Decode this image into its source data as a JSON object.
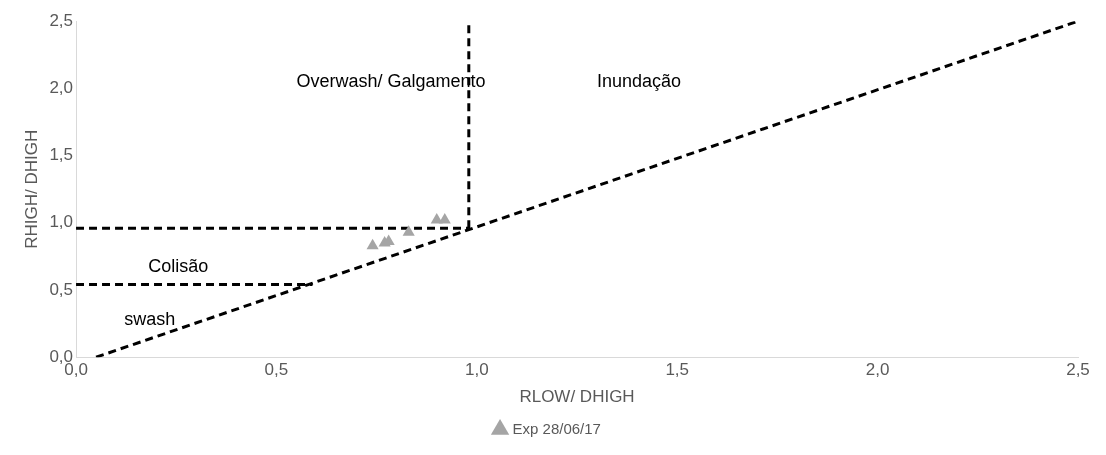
{
  "chart_data": {
    "type": "scatter",
    "xlabel": "RLOW/ DHIGH",
    "ylabel": "RHIGH/ DHIGH",
    "xlim": [
      0,
      2.5
    ],
    "ylim": [
      0,
      2.5
    ],
    "xticks": [
      {
        "value": 0,
        "label": "0,0"
      },
      {
        "value": 0.5,
        "label": "0,5"
      },
      {
        "value": 1,
        "label": "1,0"
      },
      {
        "value": 1.5,
        "label": "1,5"
      },
      {
        "value": 2,
        "label": "2,0"
      },
      {
        "value": 2.5,
        "label": "2,5"
      }
    ],
    "yticks": [
      {
        "value": 0,
        "label": "0,0"
      },
      {
        "value": 0.5,
        "label": "0,5"
      },
      {
        "value": 1,
        "label": "1,0"
      },
      {
        "value": 1.5,
        "label": "1,5"
      },
      {
        "value": 2,
        "label": "2,0"
      },
      {
        "value": 2.5,
        "label": "2,5"
      }
    ],
    "grid": false,
    "legend": "bottom",
    "marker": "triangle",
    "series": [
      {
        "name": "Exp 28/06/17",
        "type": "scatter",
        "color": "#a5a5a5",
        "x": [
          0.74,
          0.77,
          0.78,
          0.83,
          0.9,
          0.92
        ],
        "values": [
          0.83,
          0.85,
          0.86,
          0.93,
          1.02,
          1.02
        ]
      },
      {
        "type": "line",
        "color": "#000000",
        "line_style": "dashed",
        "marker": "none",
        "x": [
          0,
          0.98
        ],
        "values": [
          0.96,
          0.96
        ]
      },
      {
        "type": "line",
        "color": "#000000",
        "line_style": "dashed",
        "marker": "none",
        "x": [
          0.98,
          0.98
        ],
        "values": [
          0.96,
          2.5
        ]
      },
      {
        "type": "line",
        "color": "#000000",
        "line_style": "dashed",
        "marker": "none",
        "x": [
          0,
          0.59
        ],
        "values": [
          0.54,
          0.54
        ]
      },
      {
        "type": "line",
        "color": "#000000",
        "line_style": "dashed",
        "marker": "none",
        "x": [
          0.05,
          2.5
        ],
        "values": [
          0,
          2.5
        ]
      }
    ],
    "annotations": [
      "Overwash/ Galgamento",
      "Inundação",
      "Colisão",
      "swash"
    ]
  }
}
